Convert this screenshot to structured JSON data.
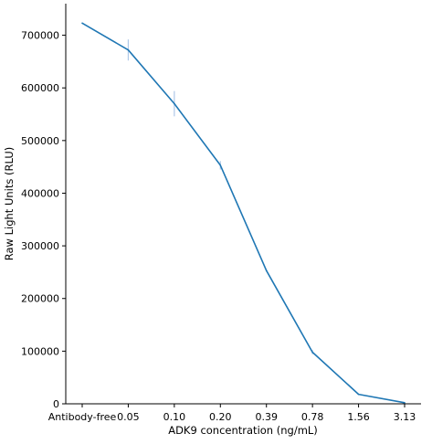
{
  "chart_data": {
    "type": "line",
    "xlabel": "ADK9 concentration (ng/mL)",
    "ylabel": "Raw Light Units (RLU)",
    "categories": [
      "Antibody-free",
      "0.05",
      "0.10",
      "0.20",
      "0.39",
      "0.78",
      "1.56",
      "3.13"
    ],
    "series": [
      {
        "values": [
          723000,
          672000,
          570000,
          453000,
          253000,
          98000,
          18000,
          2000
        ],
        "error": [
          0,
          20000,
          24000,
          8000,
          0,
          4000,
          0,
          0
        ],
        "color": "#1f77b4"
      }
    ],
    "ylim": [
      0,
      760000
    ],
    "yticks": [
      0,
      100000,
      200000,
      300000,
      400000,
      500000,
      600000,
      700000
    ],
    "ytick_labels": [
      "0",
      "100000",
      "200000",
      "300000",
      "400000",
      "500000",
      "600000",
      "700000"
    ],
    "grid": false,
    "errorbar_color": "#aec7e8"
  }
}
